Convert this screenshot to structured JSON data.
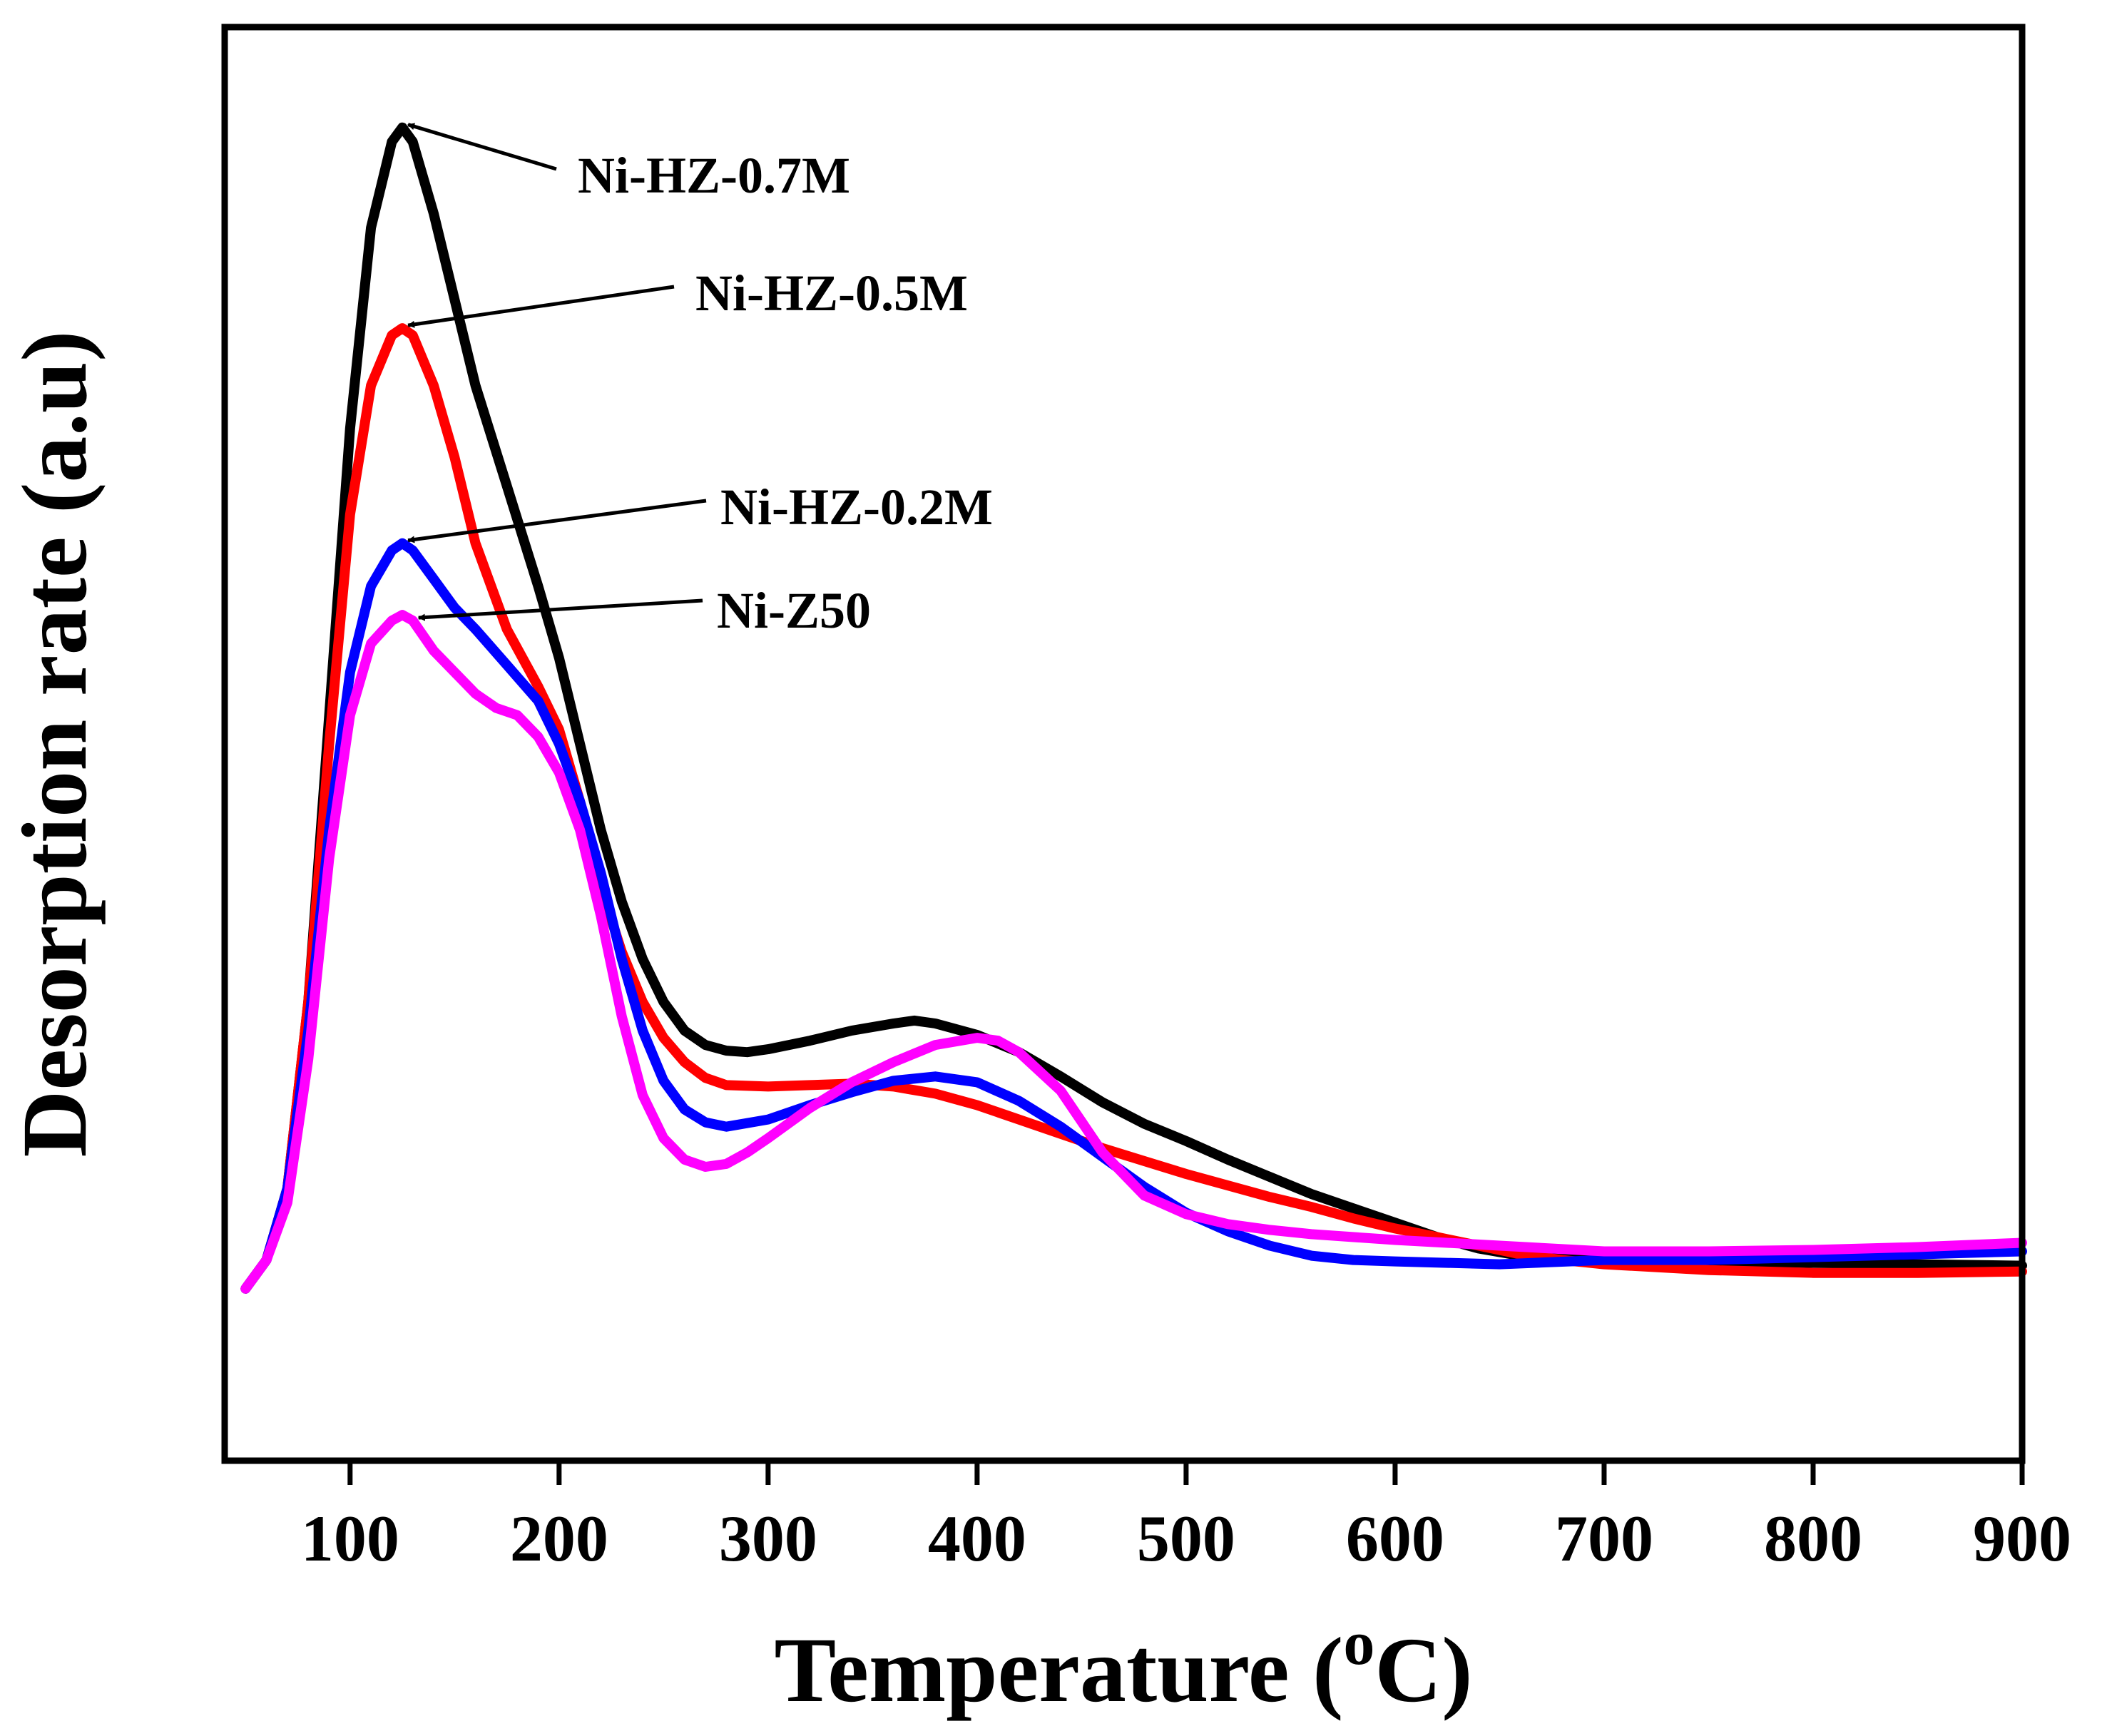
{
  "chart_data": {
    "type": "line",
    "title": "",
    "xlabel_prefix": "Temperature (",
    "xlabel_superscript": "o",
    "xlabel_suffix": "C)",
    "ylabel": "Desorption rate (a.u)",
    "xlim": [
      40,
      900
    ],
    "ylim": [
      0,
      100
    ],
    "grid": false,
    "y_ticks_shown": false,
    "x_ticks": [
      100,
      200,
      300,
      400,
      500,
      600,
      700,
      800,
      900
    ],
    "x_tick_labels": [
      "100",
      "200",
      "300",
      "400",
      "500",
      "600",
      "700",
      "800",
      "900"
    ],
    "series": [
      {
        "name": "Ni-HZ-0.7M",
        "color": "#000000",
        "points": [
          [
            50,
            12
          ],
          [
            60,
            14
          ],
          [
            70,
            19
          ],
          [
            80,
            32
          ],
          [
            90,
            52
          ],
          [
            100,
            72
          ],
          [
            110,
            86
          ],
          [
            120,
            92
          ],
          [
            125,
            93
          ],
          [
            130,
            92
          ],
          [
            140,
            87
          ],
          [
            150,
            81
          ],
          [
            160,
            75
          ],
          [
            175,
            68
          ],
          [
            190,
            61
          ],
          [
            200,
            56
          ],
          [
            210,
            50
          ],
          [
            220,
            44
          ],
          [
            230,
            39
          ],
          [
            240,
            35
          ],
          [
            250,
            32
          ],
          [
            260,
            30
          ],
          [
            270,
            29
          ],
          [
            280,
            28.6
          ],
          [
            290,
            28.5
          ],
          [
            300,
            28.7
          ],
          [
            320,
            29.3
          ],
          [
            340,
            30
          ],
          [
            360,
            30.5
          ],
          [
            370,
            30.7
          ],
          [
            380,
            30.5
          ],
          [
            400,
            29.7
          ],
          [
            420,
            28.5
          ],
          [
            440,
            26.8
          ],
          [
            460,
            25
          ],
          [
            480,
            23.5
          ],
          [
            500,
            22.3
          ],
          [
            520,
            21
          ],
          [
            540,
            19.8
          ],
          [
            560,
            18.6
          ],
          [
            580,
            17.6
          ],
          [
            600,
            16.6
          ],
          [
            620,
            15.6
          ],
          [
            640,
            14.8
          ],
          [
            660,
            14.3
          ],
          [
            700,
            14
          ],
          [
            750,
            13.9
          ],
          [
            800,
            13.8
          ],
          [
            850,
            13.7
          ],
          [
            900,
            13.6
          ]
        ]
      },
      {
        "name": "Ni-HZ-0.5M",
        "color": "#ff0000",
        "points": [
          [
            50,
            12
          ],
          [
            60,
            14
          ],
          [
            70,
            19
          ],
          [
            80,
            32
          ],
          [
            90,
            50
          ],
          [
            100,
            66
          ],
          [
            110,
            75
          ],
          [
            120,
            78.5
          ],
          [
            125,
            79
          ],
          [
            130,
            78.5
          ],
          [
            140,
            75
          ],
          [
            150,
            70
          ],
          [
            160,
            64
          ],
          [
            175,
            58
          ],
          [
            190,
            54
          ],
          [
            200,
            51
          ],
          [
            210,
            46
          ],
          [
            220,
            40
          ],
          [
            230,
            35.5
          ],
          [
            240,
            32
          ],
          [
            250,
            29.5
          ],
          [
            260,
            27.8
          ],
          [
            270,
            26.7
          ],
          [
            280,
            26.2
          ],
          [
            300,
            26.1
          ],
          [
            320,
            26.2
          ],
          [
            340,
            26.3
          ],
          [
            360,
            26.1
          ],
          [
            380,
            25.6
          ],
          [
            400,
            24.8
          ],
          [
            420,
            23.8
          ],
          [
            440,
            22.8
          ],
          [
            460,
            21.8
          ],
          [
            480,
            20.9
          ],
          [
            500,
            20
          ],
          [
            520,
            19.2
          ],
          [
            540,
            18.4
          ],
          [
            560,
            17.7
          ],
          [
            580,
            16.9
          ],
          [
            600,
            16.2
          ],
          [
            620,
            15.6
          ],
          [
            640,
            15
          ],
          [
            660,
            14.4
          ],
          [
            680,
            14
          ],
          [
            700,
            13.7
          ],
          [
            750,
            13.3
          ],
          [
            800,
            13.1
          ],
          [
            850,
            13.1
          ],
          [
            900,
            13.2
          ]
        ]
      },
      {
        "name": "Ni-HZ-0.2M",
        "color": "#0000ff",
        "points": [
          [
            50,
            12
          ],
          [
            60,
            14
          ],
          [
            70,
            19
          ],
          [
            80,
            30
          ],
          [
            90,
            44
          ],
          [
            100,
            55
          ],
          [
            110,
            61
          ],
          [
            120,
            63.5
          ],
          [
            125,
            64
          ],
          [
            130,
            63.5
          ],
          [
            140,
            61.5
          ],
          [
            150,
            59.5
          ],
          [
            160,
            58
          ],
          [
            175,
            55.5
          ],
          [
            190,
            53
          ],
          [
            200,
            50
          ],
          [
            210,
            46
          ],
          [
            220,
            41
          ],
          [
            230,
            35
          ],
          [
            240,
            30
          ],
          [
            250,
            26.5
          ],
          [
            260,
            24.5
          ],
          [
            270,
            23.6
          ],
          [
            280,
            23.3
          ],
          [
            300,
            23.8
          ],
          [
            320,
            24.8
          ],
          [
            340,
            25.7
          ],
          [
            360,
            26.5
          ],
          [
            380,
            26.8
          ],
          [
            400,
            26.4
          ],
          [
            420,
            25.1
          ],
          [
            440,
            23.3
          ],
          [
            460,
            21.2
          ],
          [
            480,
            19.1
          ],
          [
            500,
            17.3
          ],
          [
            520,
            16
          ],
          [
            540,
            15
          ],
          [
            560,
            14.3
          ],
          [
            580,
            14
          ],
          [
            600,
            13.9
          ],
          [
            650,
            13.7
          ],
          [
            700,
            14
          ],
          [
            750,
            14
          ],
          [
            800,
            14.2
          ],
          [
            850,
            14.4
          ],
          [
            900,
            14.6
          ]
        ]
      },
      {
        "name": "Ni-Z50",
        "color": "#ff00ff",
        "points": [
          [
            50,
            12
          ],
          [
            60,
            14
          ],
          [
            70,
            18
          ],
          [
            80,
            28
          ],
          [
            90,
            42
          ],
          [
            100,
            52
          ],
          [
            110,
            57
          ],
          [
            120,
            58.6
          ],
          [
            125,
            59
          ],
          [
            130,
            58.6
          ],
          [
            140,
            56.5
          ],
          [
            150,
            55
          ],
          [
            160,
            53.5
          ],
          [
            170,
            52.5
          ],
          [
            180,
            52
          ],
          [
            190,
            50.5
          ],
          [
            200,
            48
          ],
          [
            210,
            44
          ],
          [
            220,
            38
          ],
          [
            230,
            31
          ],
          [
            240,
            25.5
          ],
          [
            250,
            22.5
          ],
          [
            260,
            21
          ],
          [
            270,
            20.5
          ],
          [
            280,
            20.7
          ],
          [
            290,
            21.5
          ],
          [
            300,
            22.5
          ],
          [
            320,
            24.6
          ],
          [
            340,
            26.4
          ],
          [
            360,
            27.8
          ],
          [
            380,
            29
          ],
          [
            400,
            29.5
          ],
          [
            410,
            29.3
          ],
          [
            420,
            28.5
          ],
          [
            440,
            25.8
          ],
          [
            460,
            21.5
          ],
          [
            480,
            18.5
          ],
          [
            500,
            17.2
          ],
          [
            520,
            16.5
          ],
          [
            540,
            16.1
          ],
          [
            560,
            15.8
          ],
          [
            600,
            15.4
          ],
          [
            650,
            15
          ],
          [
            700,
            14.6
          ],
          [
            750,
            14.6
          ],
          [
            800,
            14.7
          ],
          [
            850,
            14.9
          ],
          [
            900,
            15.2
          ]
        ]
      }
    ],
    "annotations": [
      {
        "text": "Ni-HZ-0.7M",
        "target_series": "Ni-HZ-0.7M",
        "target_x": 125
      },
      {
        "text": "Ni-HZ-0.5M",
        "target_series": "Ni-HZ-0.5M",
        "target_x": 125
      },
      {
        "text": "Ni-HZ-0.2M",
        "target_series": "Ni-HZ-0.2M",
        "target_x": 125
      },
      {
        "text": "Ni-Z50",
        "target_series": "Ni-Z50",
        "target_x": 130
      }
    ]
  }
}
